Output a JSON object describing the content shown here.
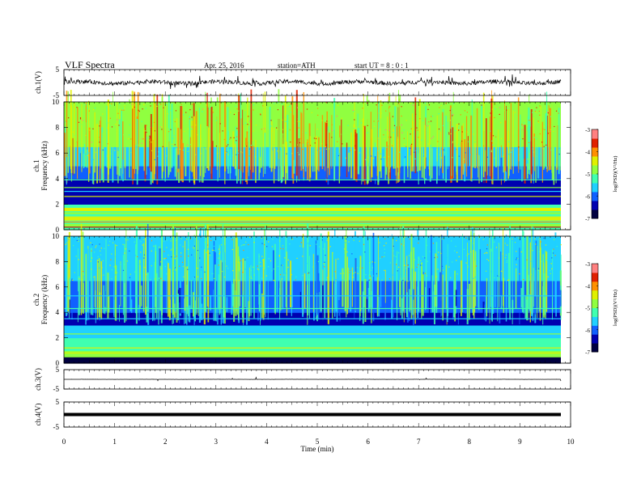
{
  "header": {
    "title": "VLF  Spectra",
    "date": "Apr. 25, 2016",
    "station": "station=ATH",
    "start": "start  UT  =    8  : 0  : 1"
  },
  "colors": {
    "trace": "#000000",
    "colorbar": [
      "#000040",
      "#0000b0",
      "#1060ff",
      "#20d0ff",
      "#40ffb0",
      "#90ff40",
      "#e0f000",
      "#ff9000",
      "#e02000",
      "#ff8080",
      "#ffffff"
    ]
  },
  "chart_data": [
    {
      "type": "line",
      "panel": "ch1-waveform",
      "ylabel": "ch.1(V)",
      "ylim": [
        -5,
        5
      ],
      "yticks": [
        "5",
        "-5"
      ],
      "xlim": [
        0,
        10
      ]
    },
    {
      "type": "heatmap",
      "panel": "ch1-spectrogram",
      "ylabel_channel": "ch.1",
      "ylabel": "Frequency  (kHz)",
      "ylim": [
        0,
        10
      ],
      "yticks": [
        "10",
        "8",
        "6",
        "4",
        "2",
        "0"
      ],
      "xlim": [
        0,
        10
      ],
      "colorbar_label": "log(PSD)(V²/Hz)",
      "colorbar_ticks": [
        "-3",
        "-4",
        "-5",
        "-6",
        "-7"
      ],
      "colorbar_range": [
        -7,
        -3
      ]
    },
    {
      "type": "heatmap",
      "panel": "ch2-spectrogram",
      "ylabel_channel": "ch.2",
      "ylabel": "Frequency  (kHz)",
      "ylim": [
        0,
        10
      ],
      "yticks": [
        "10",
        "8",
        "6",
        "4",
        "2",
        "0"
      ],
      "xlim": [
        0,
        10
      ],
      "colorbar_label": "log(PSD)(V²/Hz)",
      "colorbar_ticks": [
        "-3",
        "-4",
        "-5",
        "-6",
        "-7"
      ],
      "colorbar_range": [
        -7,
        -3
      ]
    },
    {
      "type": "line",
      "panel": "ch3-waveform",
      "ylabel": "ch.3(V)",
      "ylim": [
        -5,
        5
      ],
      "yticks": [
        "5",
        "-5"
      ],
      "xlim": [
        0,
        10
      ]
    },
    {
      "type": "line",
      "panel": "ch4-waveform",
      "ylabel": "ch.4(V)",
      "ylim": [
        -5,
        5
      ],
      "yticks": [
        "5",
        "-5"
      ],
      "xlim": [
        0,
        10
      ],
      "xlabel": "Time  (min)",
      "xticks": [
        "0",
        "1",
        "2",
        "3",
        "4",
        "5",
        "6",
        "7",
        "8",
        "9",
        "10"
      ]
    }
  ]
}
